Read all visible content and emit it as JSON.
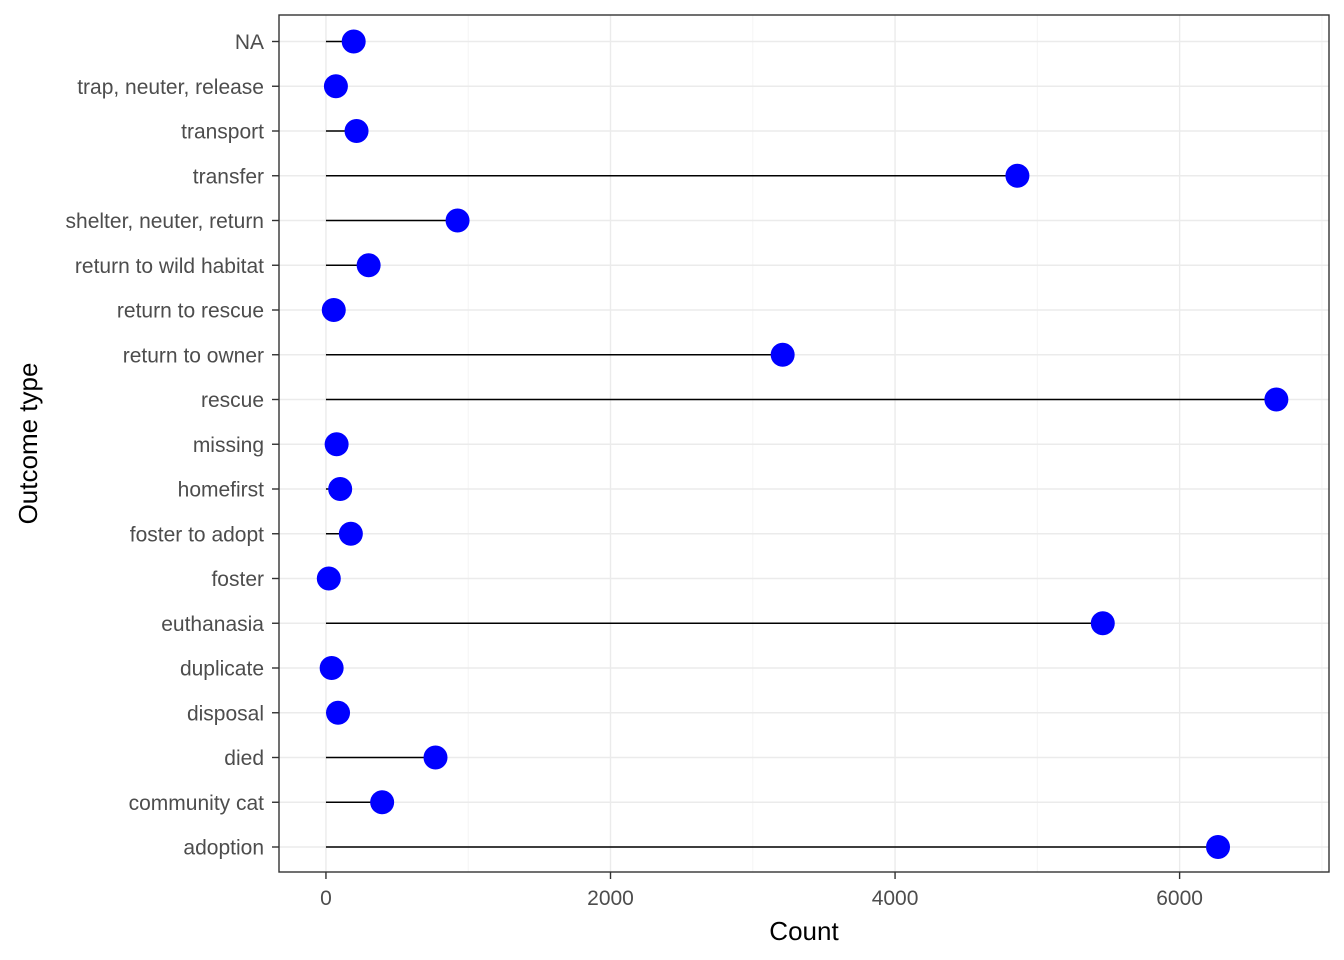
{
  "chart_data": {
    "type": "lollipop",
    "orientation": "horizontal",
    "xlabel": "Count",
    "ylabel": "Outcome type",
    "xlim": [
      -330,
      7050
    ],
    "x_ticks": [
      0,
      2000,
      4000,
      6000
    ],
    "x_tick_labels": [
      "0",
      "2000",
      "4000",
      "6000"
    ],
    "grid": true,
    "legend": "none",
    "categories": [
      "adoption",
      "community cat",
      "died",
      "disposal",
      "duplicate",
      "euthanasia",
      "foster",
      "foster to adopt",
      "homefirst",
      "missing",
      "rescue",
      "return to owner",
      "return to rescue",
      "return to wild habitat",
      "shelter, neuter, return",
      "transfer",
      "transport",
      "trap, neuter, release",
      "NA"
    ],
    "values": [
      6270,
      395,
      770,
      85,
      40,
      5460,
      20,
      175,
      100,
      75,
      6680,
      3210,
      55,
      300,
      925,
      4860,
      215,
      70,
      195
    ],
    "colors": {
      "point": "#0000ff",
      "stem": "#000000",
      "grid_major": "#ebebeb",
      "grid_minor": "#f5f5f5",
      "panel_border": "#333333",
      "tick_text": "#4d4d4d"
    }
  }
}
